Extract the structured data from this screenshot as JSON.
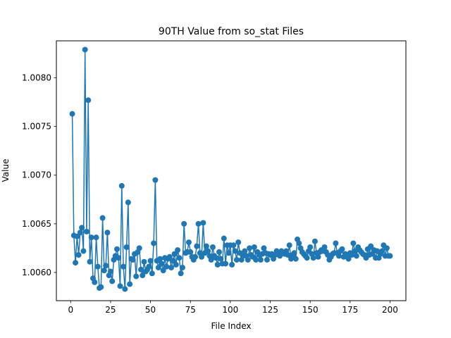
{
  "chart_data": {
    "type": "line",
    "title": "90TH Value from so_stat Files",
    "xlabel": "File Index",
    "ylabel": "Value",
    "xlim": [
      -8.95,
      209.95
    ],
    "ylim": [
      1.00571,
      1.00838
    ],
    "xticks": [
      0,
      25,
      50,
      75,
      100,
      125,
      150,
      175,
      200
    ],
    "yticks": [
      1.006,
      1.0065,
      1.007,
      1.0075,
      1.008
    ],
    "ytick_labels": [
      "1.0060",
      "1.0065",
      "1.0070",
      "1.0075",
      "1.0080"
    ],
    "grid": false,
    "marker": "circle",
    "color": "#1f77b4",
    "x_start": 1,
    "values": [
      1.00763,
      1.00638,
      1.0061,
      1.00637,
      1.00618,
      1.00641,
      1.00646,
      1.00622,
      1.00829,
      1.00642,
      1.00777,
      1.00611,
      1.00636,
      1.00594,
      1.0059,
      1.00636,
      1.00606,
      1.00584,
      1.00585,
      1.00656,
      1.00602,
      1.00607,
      1.00641,
      1.00597,
      1.00601,
      1.00591,
      1.00613,
      1.00617,
      1.00624,
      1.00615,
      1.00586,
      1.00689,
      1.00606,
      1.00583,
      1.00626,
      1.00672,
      1.00588,
      1.00614,
      1.00613,
      1.00619,
      1.00596,
      1.00621,
      1.00625,
      1.00603,
      1.00597,
      1.00611,
      1.00601,
      1.00603,
      1.00606,
      1.00612,
      1.00599,
      1.0063,
      1.00695,
      1.00612,
      1.00605,
      1.00614,
      1.00609,
      1.00602,
      1.00615,
      1.00606,
      1.00614,
      1.00616,
      1.00605,
      1.00612,
      1.00619,
      1.00608,
      1.00623,
      1.00615,
      1.00599,
      1.00605,
      1.0065,
      1.0062,
      1.00621,
      1.00631,
      1.00621,
      1.00616,
      1.00613,
      1.00616,
      1.00627,
      1.0065,
      1.0062,
      1.00616,
      1.00651,
      1.0062,
      1.00627,
      1.00622,
      1.00617,
      1.00613,
      1.00626,
      1.00617,
      1.00615,
      1.00608,
      1.00621,
      1.00614,
      1.00609,
      1.00635,
      1.00609,
      1.00628,
      1.0062,
      1.00628,
      1.00608,
      1.00628,
      1.00622,
      1.00613,
      1.00631,
      1.0062,
      1.00613,
      1.00617,
      1.00622,
      1.00617,
      1.00613,
      1.00625,
      1.00618,
      1.00616,
      1.00626,
      1.00613,
      1.00621,
      1.00618,
      1.00613,
      1.00619,
      1.00625,
      1.0062,
      1.00613,
      1.00619,
      1.00618,
      1.00619,
      1.00614,
      1.00618,
      1.00622,
      1.00619,
      1.00617,
      1.00622,
      1.0062,
      1.00619,
      1.00622,
      1.00618,
      1.00628,
      1.00614,
      1.00618,
      1.0062,
      1.00614,
      1.00634,
      1.0063,
      1.00625,
      1.00621,
      1.00619,
      1.00617,
      1.00615,
      1.00622,
      1.00626,
      1.00619,
      1.00615,
      1.00632,
      1.0062,
      1.00616,
      1.00621,
      1.00623,
      1.00622,
      1.00626,
      1.00621,
      1.00618,
      1.00613,
      1.00616,
      1.00619,
      1.0062,
      1.0063,
      1.0062,
      1.00617,
      1.00622,
      1.00624,
      1.00616,
      1.00619,
      1.00617,
      1.00614,
      1.0062,
      1.00618,
      1.0063,
      1.00622,
      1.00617,
      1.00626,
      1.00623,
      1.00621,
      1.00619,
      1.00618,
      1.00615,
      1.00624,
      1.00618,
      1.00627,
      1.00619,
      1.00623,
      1.00615,
      1.00622,
      1.00615,
      1.00619,
      1.00622,
      1.00628,
      1.00617,
      1.00625,
      1.00617,
      1.00617
    ]
  }
}
